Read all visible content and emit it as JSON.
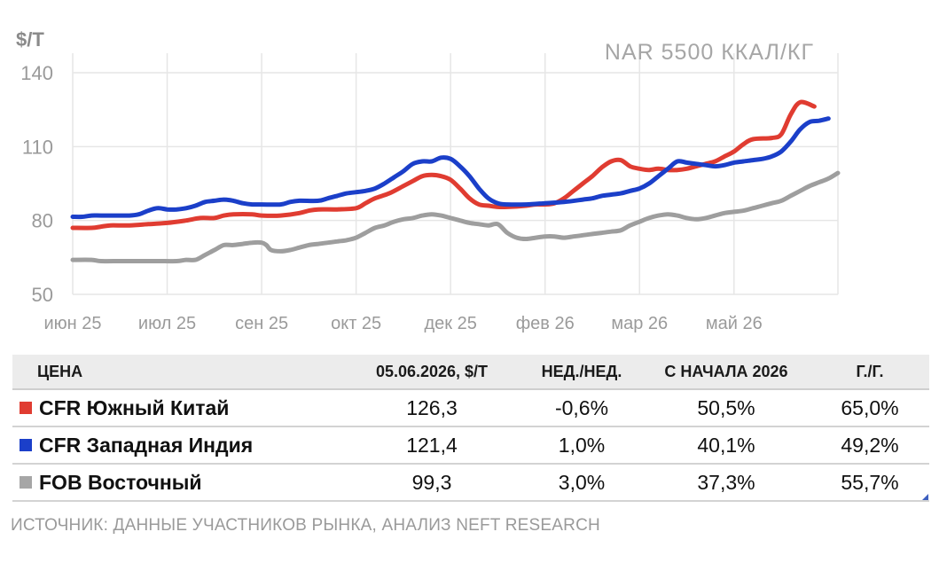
{
  "chart_data": {
    "type": "line",
    "title": "NAR 5500 ККАЛ/КГ",
    "ylabel": "$/Т",
    "ylim": [
      50,
      140
    ],
    "yticks": [
      50,
      80,
      110,
      140
    ],
    "x_tick_labels": [
      "июн 25",
      "июл 25",
      "сен 25",
      "окт 25",
      "дек 25",
      "фев 26",
      "мар 26",
      "май 26"
    ],
    "grid": true,
    "series": [
      {
        "name": "CFR Южный Китай",
        "color": "#e03c31",
        "values": [
          [
            0,
            77
          ],
          [
            0.2,
            77
          ],
          [
            0.3,
            77.5
          ],
          [
            0.4,
            78
          ],
          [
            0.6,
            78
          ],
          [
            0.8,
            78.5
          ],
          [
            1,
            79
          ],
          [
            1.2,
            80
          ],
          [
            1.35,
            81
          ],
          [
            1.5,
            81
          ],
          [
            1.6,
            82
          ],
          [
            1.7,
            82.5
          ],
          [
            1.9,
            82.5
          ],
          [
            2,
            82
          ],
          [
            2.2,
            82
          ],
          [
            2.4,
            83
          ],
          [
            2.5,
            84
          ],
          [
            2.6,
            84.5
          ],
          [
            2.8,
            84.5
          ],
          [
            3,
            85
          ],
          [
            3.1,
            87
          ],
          [
            3.2,
            89
          ],
          [
            3.35,
            91
          ],
          [
            3.5,
            94
          ],
          [
            3.6,
            96
          ],
          [
            3.7,
            98
          ],
          [
            3.8,
            98.5
          ],
          [
            3.9,
            98
          ],
          [
            4,
            96.5
          ],
          [
            4.1,
            93
          ],
          [
            4.2,
            89
          ],
          [
            4.3,
            86.5
          ],
          [
            4.4,
            86
          ],
          [
            4.5,
            85.5
          ],
          [
            4.6,
            85.5
          ],
          [
            4.8,
            86
          ],
          [
            4.9,
            86.5
          ],
          [
            5,
            86.5
          ],
          [
            5.1,
            87
          ],
          [
            5.2,
            89
          ],
          [
            5.3,
            92
          ],
          [
            5.4,
            95
          ],
          [
            5.5,
            98
          ],
          [
            5.6,
            101.5
          ],
          [
            5.7,
            104
          ],
          [
            5.8,
            104.5
          ],
          [
            5.9,
            102
          ],
          [
            6,
            101
          ],
          [
            6.1,
            100.5
          ],
          [
            6.2,
            101
          ],
          [
            6.3,
            100.5
          ],
          [
            6.4,
            100.5
          ],
          [
            6.5,
            101
          ],
          [
            6.6,
            102
          ],
          [
            6.7,
            103
          ],
          [
            6.8,
            104
          ],
          [
            6.9,
            106
          ],
          [
            7,
            108
          ],
          [
            7.1,
            111
          ],
          [
            7.2,
            113
          ],
          [
            7.4,
            113.5
          ],
          [
            7.5,
            115
          ],
          [
            7.6,
            123
          ],
          [
            7.7,
            128
          ],
          [
            7.85,
            126.3
          ]
        ]
      },
      {
        "name": "CFR Западная Индия",
        "color": "#1b3fc9",
        "values": [
          [
            0,
            81.5
          ],
          [
            0.1,
            81.5
          ],
          [
            0.2,
            82
          ],
          [
            0.3,
            82
          ],
          [
            0.5,
            82
          ],
          [
            0.6,
            82
          ],
          [
            0.7,
            82.5
          ],
          [
            0.8,
            84
          ],
          [
            0.9,
            85
          ],
          [
            1,
            84.5
          ],
          [
            1.1,
            84.5
          ],
          [
            1.2,
            85
          ],
          [
            1.3,
            86
          ],
          [
            1.4,
            87.5
          ],
          [
            1.5,
            88
          ],
          [
            1.6,
            88.5
          ],
          [
            1.7,
            88
          ],
          [
            1.8,
            87
          ],
          [
            1.9,
            86.5
          ],
          [
            2,
            86.5
          ],
          [
            2.2,
            86.5
          ],
          [
            2.3,
            87.5
          ],
          [
            2.4,
            88
          ],
          [
            2.6,
            88
          ],
          [
            2.7,
            89
          ],
          [
            2.8,
            90
          ],
          [
            2.9,
            91
          ],
          [
            3,
            91.5
          ],
          [
            3.1,
            92
          ],
          [
            3.2,
            93
          ],
          [
            3.3,
            95
          ],
          [
            3.4,
            97.5
          ],
          [
            3.5,
            100
          ],
          [
            3.6,
            103
          ],
          [
            3.7,
            104
          ],
          [
            3.8,
            104
          ],
          [
            3.9,
            105.5
          ],
          [
            4,
            105
          ],
          [
            4.1,
            102
          ],
          [
            4.2,
            98
          ],
          [
            4.3,
            93
          ],
          [
            4.4,
            89
          ],
          [
            4.5,
            87
          ],
          [
            4.6,
            86.5
          ],
          [
            4.8,
            86.5
          ],
          [
            5,
            87
          ],
          [
            5.2,
            87.5
          ],
          [
            5.4,
            88.5
          ],
          [
            5.5,
            89
          ],
          [
            5.6,
            90
          ],
          [
            5.7,
            90.5
          ],
          [
            5.8,
            91
          ],
          [
            5.9,
            92
          ],
          [
            6,
            93
          ],
          [
            6.1,
            95
          ],
          [
            6.2,
            98
          ],
          [
            6.3,
            101
          ],
          [
            6.4,
            104
          ],
          [
            6.5,
            103.5
          ],
          [
            6.6,
            103
          ],
          [
            6.7,
            102.5
          ],
          [
            6.8,
            102
          ],
          [
            6.9,
            102.5
          ],
          [
            7,
            103.5
          ],
          [
            7.1,
            104
          ],
          [
            7.2,
            104.5
          ],
          [
            7.3,
            105
          ],
          [
            7.4,
            106
          ],
          [
            7.5,
            108
          ],
          [
            7.6,
            112
          ],
          [
            7.7,
            117
          ],
          [
            7.8,
            120
          ],
          [
            7.9,
            120.5
          ],
          [
            8,
            121.4
          ]
        ]
      },
      {
        "name": "FOB Восточный",
        "color": "#9e9e9e",
        "values": [
          [
            0,
            64
          ],
          [
            0.2,
            64
          ],
          [
            0.3,
            63.5
          ],
          [
            0.5,
            63.5
          ],
          [
            0.7,
            63.5
          ],
          [
            0.9,
            63.5
          ],
          [
            1.1,
            63.5
          ],
          [
            1.2,
            64
          ],
          [
            1.3,
            64
          ],
          [
            1.4,
            66
          ],
          [
            1.5,
            68
          ],
          [
            1.6,
            70
          ],
          [
            1.7,
            70
          ],
          [
            1.8,
            70.5
          ],
          [
            1.9,
            71
          ],
          [
            2,
            71
          ],
          [
            2.05,
            70
          ],
          [
            2.1,
            68
          ],
          [
            2.2,
            67.5
          ],
          [
            2.3,
            68
          ],
          [
            2.4,
            69
          ],
          [
            2.5,
            70
          ],
          [
            2.6,
            70.5
          ],
          [
            2.7,
            71
          ],
          [
            2.8,
            71.5
          ],
          [
            2.9,
            72
          ],
          [
            3,
            73
          ],
          [
            3.1,
            75
          ],
          [
            3.2,
            77
          ],
          [
            3.3,
            78
          ],
          [
            3.4,
            79.5
          ],
          [
            3.5,
            80.5
          ],
          [
            3.6,
            81
          ],
          [
            3.7,
            82
          ],
          [
            3.8,
            82.5
          ],
          [
            3.9,
            82
          ],
          [
            4,
            81
          ],
          [
            4.1,
            80
          ],
          [
            4.2,
            79
          ],
          [
            4.3,
            78.5
          ],
          [
            4.4,
            78
          ],
          [
            4.5,
            78.5
          ],
          [
            4.6,
            75
          ],
          [
            4.7,
            73
          ],
          [
            4.8,
            72.5
          ],
          [
            4.9,
            73
          ],
          [
            5,
            73.5
          ],
          [
            5.1,
            73.5
          ],
          [
            5.2,
            73
          ],
          [
            5.3,
            73.5
          ],
          [
            5.4,
            74
          ],
          [
            5.5,
            74.5
          ],
          [
            5.6,
            75
          ],
          [
            5.7,
            75.5
          ],
          [
            5.8,
            76
          ],
          [
            5.9,
            78
          ],
          [
            6,
            79.5
          ],
          [
            6.1,
            81
          ],
          [
            6.2,
            82
          ],
          [
            6.3,
            82.5
          ],
          [
            6.4,
            82
          ],
          [
            6.5,
            81
          ],
          [
            6.6,
            80.5
          ],
          [
            6.7,
            81
          ],
          [
            6.8,
            82
          ],
          [
            6.9,
            83
          ],
          [
            7,
            83.5
          ],
          [
            7.1,
            84
          ],
          [
            7.2,
            85
          ],
          [
            7.3,
            86
          ],
          [
            7.4,
            87
          ],
          [
            7.5,
            88
          ],
          [
            7.6,
            90
          ],
          [
            7.7,
            92
          ],
          [
            7.8,
            94
          ],
          [
            7.9,
            95.5
          ],
          [
            8,
            97
          ],
          [
            8.1,
            99.3
          ]
        ]
      }
    ]
  },
  "table": {
    "headers": [
      "ЦЕНА",
      "05.06.2026, $/Т",
      "НЕД./НЕД.",
      "С НАЧАЛА 2026",
      "Г./Г."
    ],
    "rows": [
      {
        "name": "CFR Южный Китай",
        "color": "#e03c31",
        "price": "126,3",
        "wow": "-0,6%",
        "ytd": "50,5%",
        "yoy": "65,0%"
      },
      {
        "name": "CFR Западная Индия",
        "color": "#1b3fc9",
        "price": "121,4",
        "wow": "1,0%",
        "ytd": "40,1%",
        "yoy": "49,2%"
      },
      {
        "name": "FOB Восточный",
        "color": "#a6a6a6",
        "price": "99,3",
        "wow": "3,0%",
        "ytd": "37,3%",
        "yoy": "55,7%"
      }
    ]
  },
  "source": "ИСТОЧНИК: ДАННЫЕ УЧАСТНИКОВ РЫНКА, АНАЛИЗ NEFT RESEARCH"
}
